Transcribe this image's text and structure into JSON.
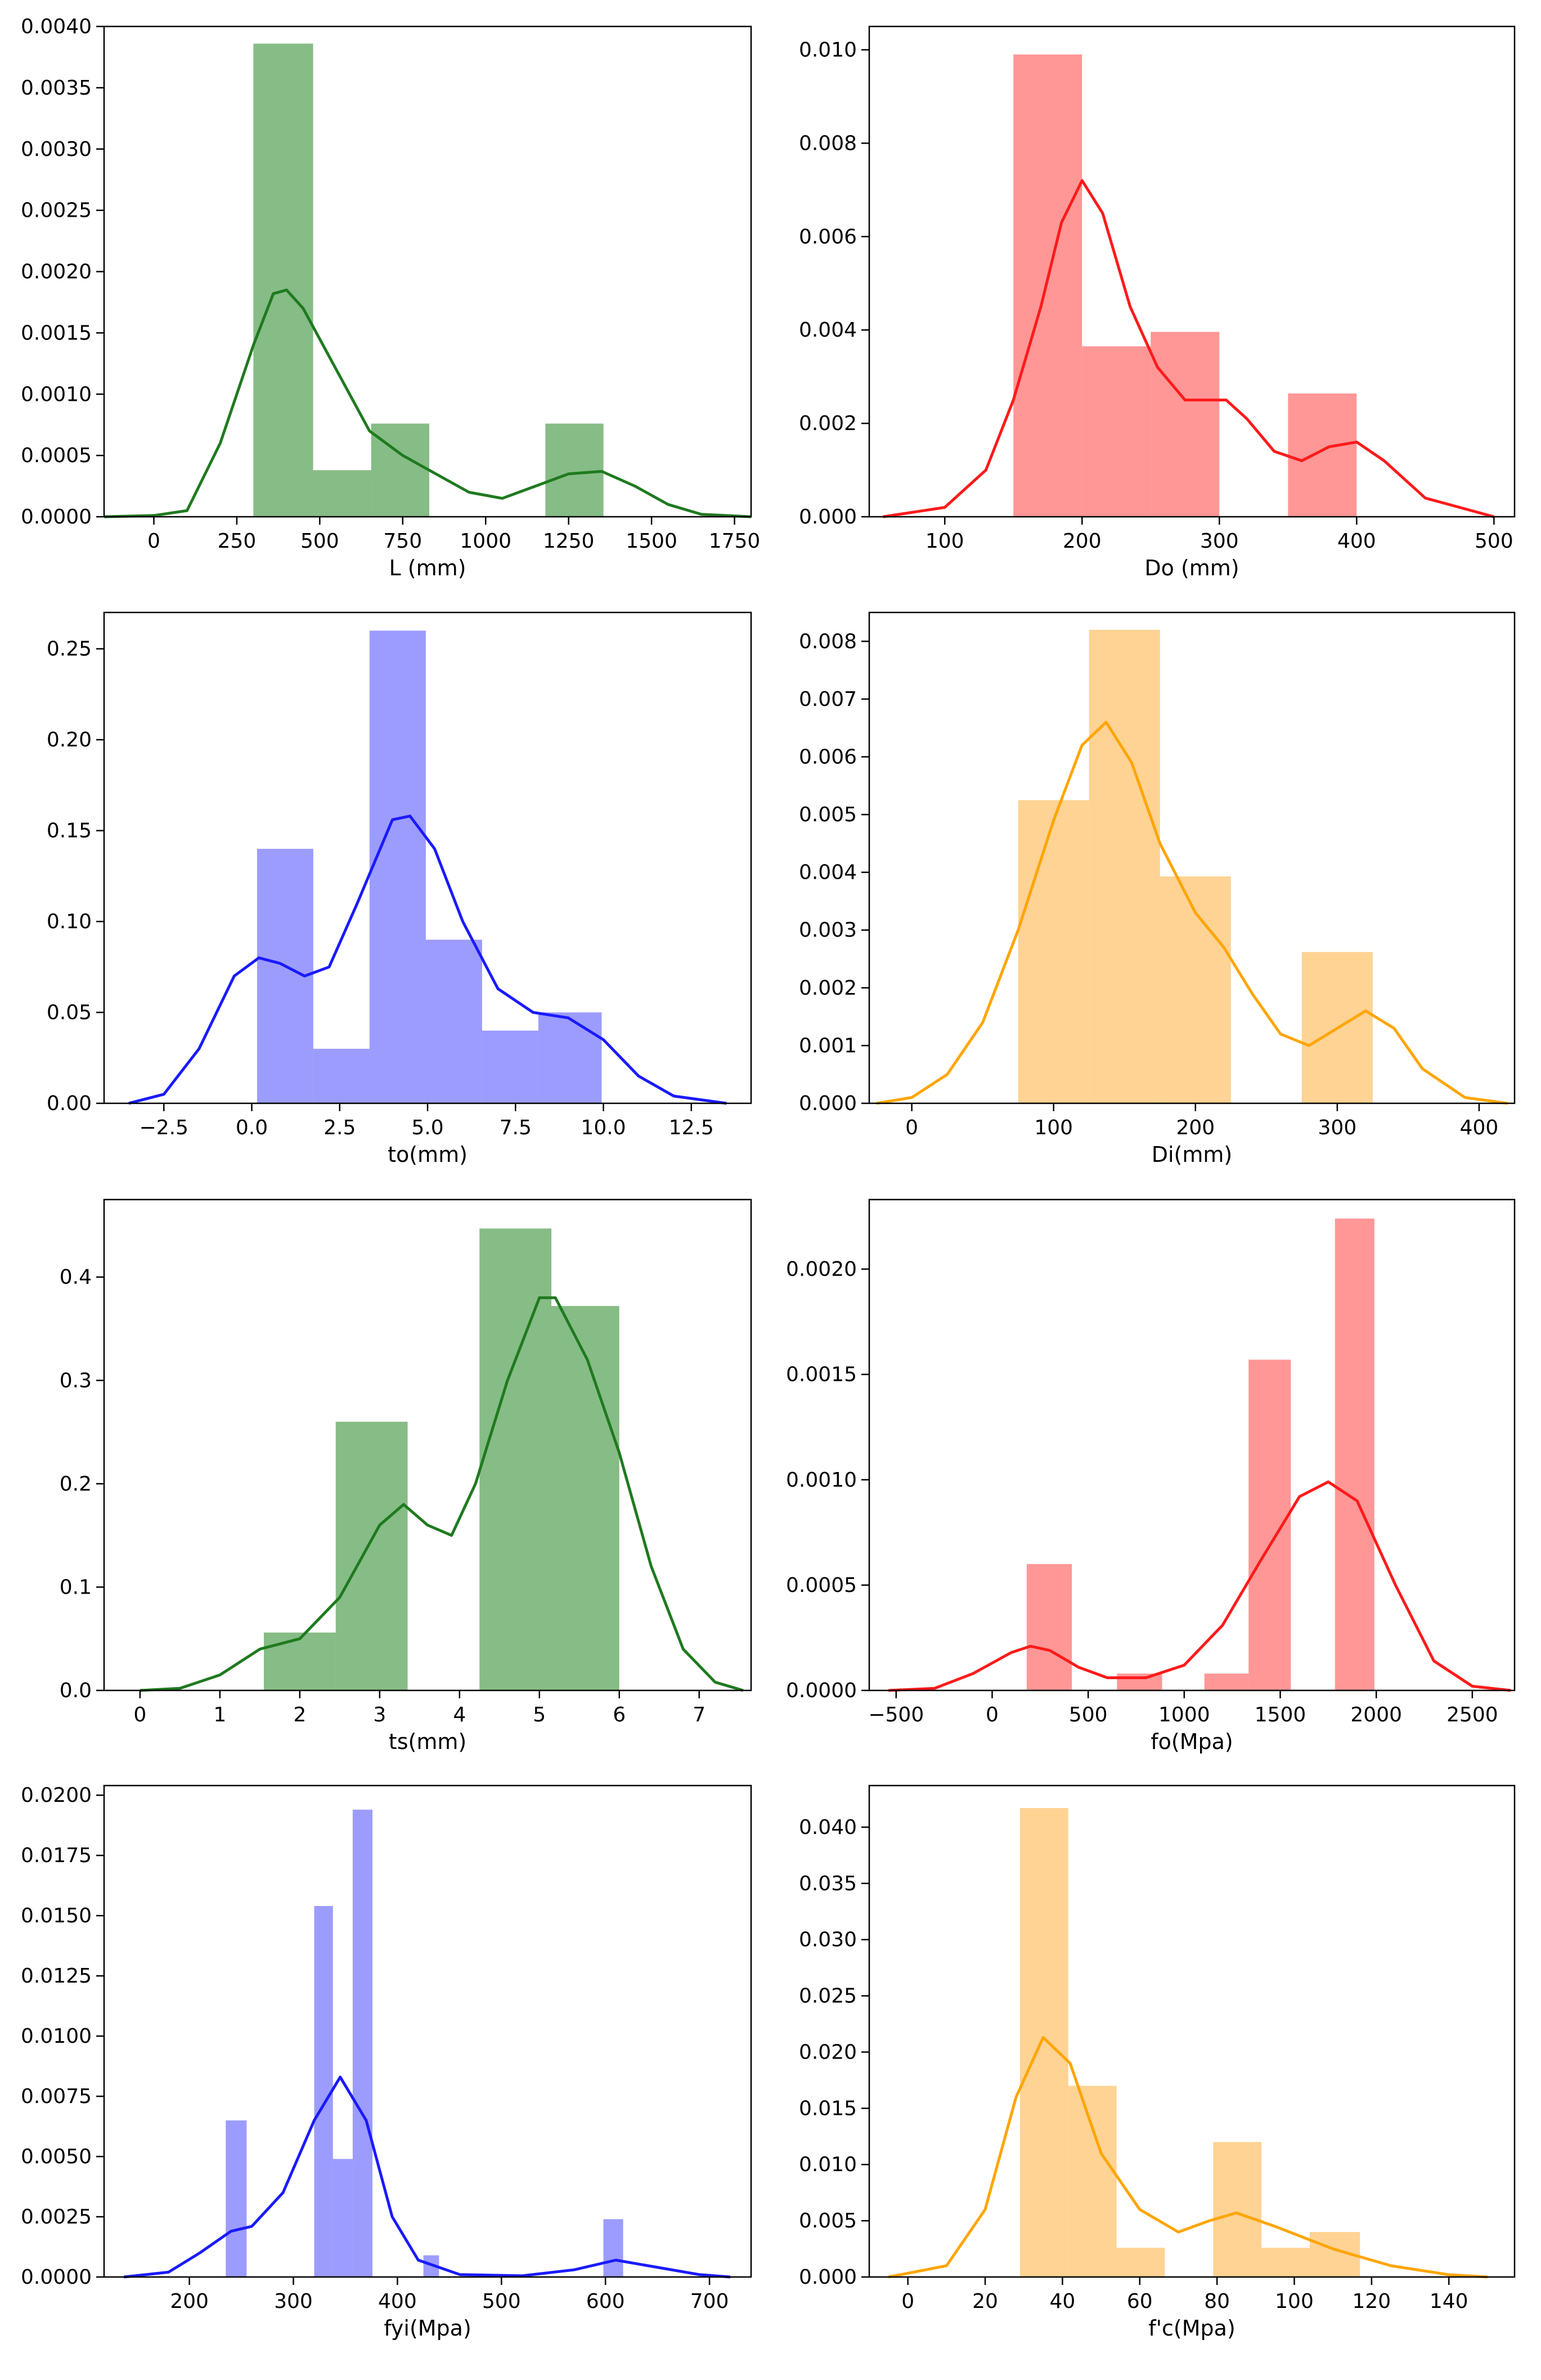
{
  "chart_data": [
    {
      "type": "bar",
      "xlabel": "L (mm)",
      "ylabel": "",
      "xlim": [
        -150,
        1800
      ],
      "ylim": [
        0,
        0.004
      ],
      "xticks": [
        0,
        250,
        500,
        750,
        1000,
        1250,
        1500,
        1750
      ],
      "xtick_labels": [
        "0",
        "250",
        "500",
        "750",
        "1000",
        "1250",
        "1500",
        "1750"
      ],
      "yticks": [
        0,
        0.0005,
        0.001,
        0.0015,
        0.002,
        0.0025,
        0.003,
        0.0035,
        0.004
      ],
      "ytick_labels": [
        "0.0000",
        "0.0005",
        "0.0010",
        "0.0015",
        "0.0020",
        "0.0025",
        "0.0030",
        "0.0035",
        "0.0040"
      ],
      "color": "#2e8b2e",
      "bars": [
        [
          300,
          480,
          0.00386
        ],
        [
          480,
          655,
          0.00038
        ],
        [
          655,
          830,
          0.00076
        ],
        [
          830,
          1005,
          0
        ],
        [
          1005,
          1180,
          0
        ],
        [
          1180,
          1355,
          0.00076
        ]
      ],
      "kde": [
        [
          -150,
          0
        ],
        [
          0,
          1e-05
        ],
        [
          100,
          5e-05
        ],
        [
          200,
          0.0006
        ],
        [
          300,
          0.0014
        ],
        [
          360,
          0.00182
        ],
        [
          400,
          0.00185
        ],
        [
          450,
          0.0017
        ],
        [
          550,
          0.0012
        ],
        [
          650,
          0.0007
        ],
        [
          750,
          0.0005
        ],
        [
          850,
          0.00035
        ],
        [
          950,
          0.0002
        ],
        [
          1050,
          0.00015
        ],
        [
          1150,
          0.00025
        ],
        [
          1250,
          0.00035
        ],
        [
          1350,
          0.00037
        ],
        [
          1450,
          0.00025
        ],
        [
          1550,
          0.0001
        ],
        [
          1650,
          2e-05
        ],
        [
          1800,
          0
        ]
      ]
    },
    {
      "type": "bar",
      "xlabel": "Do (mm)",
      "ylabel": "",
      "xlim": [
        45,
        515
      ],
      "ylim": [
        0,
        0.0105
      ],
      "xticks": [
        100,
        200,
        300,
        400,
        500
      ],
      "xtick_labels": [
        "100",
        "200",
        "300",
        "400",
        "500"
      ],
      "yticks": [
        0,
        0.002,
        0.004,
        0.006,
        0.008,
        0.01
      ],
      "ytick_labels": [
        "0.000",
        "0.002",
        "0.004",
        "0.006",
        "0.008",
        "0.010"
      ],
      "color": "#ff4c4c",
      "bars": [
        [
          150,
          200,
          0.0099
        ],
        [
          200,
          250,
          0.00365
        ],
        [
          250,
          300,
          0.00396
        ],
        [
          300,
          350,
          0
        ],
        [
          350,
          400,
          0.00264
        ]
      ],
      "kde": [
        [
          55,
          0
        ],
        [
          100,
          0.0002
        ],
        [
          130,
          0.001
        ],
        [
          150,
          0.0025
        ],
        [
          170,
          0.0045
        ],
        [
          185,
          0.0063
        ],
        [
          200,
          0.0072
        ],
        [
          215,
          0.0065
        ],
        [
          235,
          0.0045
        ],
        [
          255,
          0.0032
        ],
        [
          275,
          0.0025
        ],
        [
          290,
          0.0025
        ],
        [
          305,
          0.0025
        ],
        [
          320,
          0.0021
        ],
        [
          340,
          0.0014
        ],
        [
          360,
          0.0012
        ],
        [
          380,
          0.0015
        ],
        [
          400,
          0.0016
        ],
        [
          420,
          0.0012
        ],
        [
          450,
          0.0004
        ],
        [
          500,
          0
        ]
      ]
    },
    {
      "type": "bar",
      "xlabel": "to(mm)",
      "ylabel": "",
      "xlim": [
        -4.2,
        14.2
      ],
      "ylim": [
        0,
        0.27
      ],
      "xticks": [
        -2.5,
        0,
        2.5,
        5,
        7.5,
        10,
        12.5
      ],
      "xtick_labels": [
        "−2.5",
        "0.0",
        "2.5",
        "5.0",
        "7.5",
        "10.0",
        "12.5"
      ],
      "yticks": [
        0,
        0.05,
        0.1,
        0.15,
        0.2,
        0.25
      ],
      "ytick_labels": [
        "0.00",
        "0.05",
        "0.10",
        "0.15",
        "0.20",
        "0.25"
      ],
      "color": "#5555ff",
      "bars": [
        [
          0.15,
          1.75,
          0.14
        ],
        [
          1.75,
          3.35,
          0.03
        ],
        [
          3.35,
          4.95,
          0.26
        ],
        [
          4.95,
          6.55,
          0.09
        ],
        [
          6.55,
          8.15,
          0.04
        ],
        [
          8.15,
          9.95,
          0.05
        ]
      ],
      "kde": [
        [
          -3.5,
          0
        ],
        [
          -2.5,
          0.005
        ],
        [
          -1.5,
          0.03
        ],
        [
          -0.5,
          0.07
        ],
        [
          0.2,
          0.08
        ],
        [
          0.8,
          0.077
        ],
        [
          1.5,
          0.07
        ],
        [
          2.2,
          0.075
        ],
        [
          3,
          0.11
        ],
        [
          4,
          0.156
        ],
        [
          4.5,
          0.158
        ],
        [
          5.2,
          0.14
        ],
        [
          6,
          0.1
        ],
        [
          7,
          0.063
        ],
        [
          8,
          0.05
        ],
        [
          9,
          0.047
        ],
        [
          10,
          0.035
        ],
        [
          11,
          0.015
        ],
        [
          12,
          0.004
        ],
        [
          13.5,
          0
        ]
      ]
    },
    {
      "type": "bar",
      "xlabel": "Di(mm)",
      "ylabel": "",
      "xlim": [
        -30,
        425
      ],
      "ylim": [
        0,
        0.0085
      ],
      "xticks": [
        0,
        100,
        200,
        300,
        400
      ],
      "xtick_labels": [
        "0",
        "100",
        "200",
        "300",
        "400"
      ],
      "yticks": [
        0,
        0.001,
        0.002,
        0.003,
        0.004,
        0.005,
        0.006,
        0.007,
        0.008
      ],
      "ytick_labels": [
        "0.000",
        "0.001",
        "0.002",
        "0.003",
        "0.004",
        "0.005",
        "0.006",
        "0.007",
        "0.008"
      ],
      "color": "#ffb347",
      "bars": [
        [
          75,
          125,
          0.00525
        ],
        [
          125,
          175,
          0.0082
        ],
        [
          175,
          225,
          0.00393
        ],
        [
          225,
          275,
          0
        ],
        [
          275,
          325,
          0.00262
        ]
      ],
      "kde": [
        [
          -25,
          0
        ],
        [
          0,
          0.0001
        ],
        [
          25,
          0.0005
        ],
        [
          50,
          0.0014
        ],
        [
          75,
          0.003
        ],
        [
          100,
          0.0049
        ],
        [
          120,
          0.0062
        ],
        [
          137,
          0.0066
        ],
        [
          155,
          0.0059
        ],
        [
          175,
          0.0045
        ],
        [
          200,
          0.0033
        ],
        [
          220,
          0.0027
        ],
        [
          240,
          0.0019
        ],
        [
          260,
          0.0012
        ],
        [
          280,
          0.001
        ],
        [
          300,
          0.0013
        ],
        [
          320,
          0.0016
        ],
        [
          340,
          0.0013
        ],
        [
          360,
          0.0006
        ],
        [
          390,
          0.0001
        ],
        [
          420,
          0
        ]
      ]
    },
    {
      "type": "bar",
      "xlabel": "ts(mm)",
      "ylabel": "",
      "xlim": [
        -0.45,
        7.65
      ],
      "ylim": [
        0,
        0.475
      ],
      "xticks": [
        0,
        1,
        2,
        3,
        4,
        5,
        6,
        7
      ],
      "xtick_labels": [
        "0",
        "1",
        "2",
        "3",
        "4",
        "5",
        "6",
        "7"
      ],
      "yticks": [
        0,
        0.1,
        0.2,
        0.3,
        0.4
      ],
      "ytick_labels": [
        "0.0",
        "0.1",
        "0.2",
        "0.3",
        "0.4"
      ],
      "color": "#2e8b2e",
      "bars": [
        [
          1.55,
          2.45,
          0.056
        ],
        [
          2.45,
          3.35,
          0.26
        ],
        [
          3.35,
          4.25,
          0
        ],
        [
          4.25,
          5.15,
          0.447
        ],
        [
          5.15,
          6.0,
          0.372
        ]
      ],
      "kde": [
        [
          0,
          0
        ],
        [
          0.5,
          0.002
        ],
        [
          1,
          0.015
        ],
        [
          1.5,
          0.04
        ],
        [
          2,
          0.05
        ],
        [
          2.5,
          0.09
        ],
        [
          3,
          0.16
        ],
        [
          3.3,
          0.18
        ],
        [
          3.6,
          0.16
        ],
        [
          3.9,
          0.15
        ],
        [
          4.2,
          0.2
        ],
        [
          4.6,
          0.3
        ],
        [
          5,
          0.38
        ],
        [
          5.2,
          0.38
        ],
        [
          5.6,
          0.32
        ],
        [
          6,
          0.23
        ],
        [
          6.4,
          0.12
        ],
        [
          6.8,
          0.04
        ],
        [
          7.2,
          0.008
        ],
        [
          7.55,
          0
        ]
      ]
    },
    {
      "type": "bar",
      "xlabel": "fo(Mpa)",
      "ylabel": "",
      "xlim": [
        -640,
        2720
      ],
      "ylim": [
        0,
        0.00233
      ],
      "xticks": [
        -500,
        0,
        500,
        1000,
        1500,
        2000,
        2500
      ],
      "xtick_labels": [
        "−500",
        "0",
        "500",
        "1000",
        "1500",
        "2000",
        "2500"
      ],
      "yticks": [
        0,
        0.0005,
        0.001,
        0.0015,
        0.002
      ],
      "ytick_labels": [
        "0.0000",
        "0.0005",
        "0.0010",
        "0.0015",
        "0.0020"
      ],
      "color": "#ff4c4c",
      "bars": [
        [
          180,
          415,
          0.0006
        ],
        [
          415,
          650,
          0
        ],
        [
          650,
          885,
          8e-05
        ],
        [
          885,
          1105,
          0
        ],
        [
          1105,
          1335,
          8e-05
        ],
        [
          1335,
          1555,
          0.00157
        ],
        [
          1555,
          1785,
          0
        ],
        [
          1785,
          1990,
          0.00224
        ]
      ],
      "kde": [
        [
          -540,
          0
        ],
        [
          -300,
          1e-05
        ],
        [
          -100,
          8e-05
        ],
        [
          100,
          0.00018
        ],
        [
          200,
          0.00021
        ],
        [
          300,
          0.00019
        ],
        [
          450,
          0.00011
        ],
        [
          600,
          6e-05
        ],
        [
          800,
          6e-05
        ],
        [
          1000,
          0.00012
        ],
        [
          1200,
          0.00031
        ],
        [
          1400,
          0.00062
        ],
        [
          1600,
          0.00092
        ],
        [
          1750,
          0.00099
        ],
        [
          1900,
          0.0009
        ],
        [
          2100,
          0.0005
        ],
        [
          2300,
          0.00014
        ],
        [
          2500,
          2e-05
        ],
        [
          2700,
          0
        ]
      ]
    },
    {
      "type": "bar",
      "xlabel": "fyi(Mpa)",
      "ylabel": "",
      "xlim": [
        118,
        740
      ],
      "ylim": [
        0,
        0.0204
      ],
      "xticks": [
        200,
        300,
        400,
        500,
        600,
        700
      ],
      "xtick_labels": [
        "200",
        "300",
        "400",
        "500",
        "600",
        "700"
      ],
      "yticks": [
        0,
        0.0025,
        0.005,
        0.0075,
        0.01,
        0.0125,
        0.015,
        0.0175,
        0.02
      ],
      "ytick_labels": [
        "0.0000",
        "0.0025",
        "0.0050",
        "0.0075",
        "0.0100",
        "0.0125",
        "0.0150",
        "0.0175",
        "0.0200"
      ],
      "color": "#5555ff",
      "bars": [
        [
          235,
          255,
          0.0065
        ],
        [
          255,
          320,
          0
        ],
        [
          320,
          338,
          0.0154
        ],
        [
          338,
          357,
          0.0049
        ],
        [
          357,
          376,
          0.0194
        ],
        [
          376,
          425,
          0
        ],
        [
          425,
          440,
          0.0009
        ],
        [
          440,
          598,
          0
        ],
        [
          598,
          617,
          0.0024
        ]
      ],
      "kde": [
        [
          137,
          0
        ],
        [
          180,
          0.0002
        ],
        [
          210,
          0.001
        ],
        [
          240,
          0.0019
        ],
        [
          260,
          0.0021
        ],
        [
          290,
          0.0035
        ],
        [
          320,
          0.0065
        ],
        [
          345,
          0.0083
        ],
        [
          370,
          0.0065
        ],
        [
          395,
          0.0025
        ],
        [
          420,
          0.0007
        ],
        [
          460,
          0.0001
        ],
        [
          520,
          5e-05
        ],
        [
          570,
          0.0003
        ],
        [
          610,
          0.0007
        ],
        [
          650,
          0.0004
        ],
        [
          690,
          0.0001
        ],
        [
          720,
          0
        ]
      ]
    },
    {
      "type": "bar",
      "xlabel": "f'c(Mpa)",
      "ylabel": "",
      "xlim": [
        -10,
        157
      ],
      "ylim": [
        0,
        0.0437
      ],
      "xticks": [
        0,
        20,
        40,
        60,
        80,
        100,
        120,
        140
      ],
      "xtick_labels": [
        "0",
        "20",
        "40",
        "60",
        "80",
        "100",
        "120",
        "140"
      ],
      "yticks": [
        0,
        0.005,
        0.01,
        0.015,
        0.02,
        0.025,
        0.03,
        0.035,
        0.04
      ],
      "ytick_labels": [
        "0.000",
        "0.005",
        "0.010",
        "0.015",
        "0.020",
        "0.025",
        "0.030",
        "0.035",
        "0.040"
      ],
      "color": "#ffb347",
      "bars": [
        [
          29,
          41.5,
          0.0417
        ],
        [
          41.5,
          54,
          0.017
        ],
        [
          54,
          66.5,
          0.0026
        ],
        [
          66.5,
          79,
          0
        ],
        [
          79,
          91.5,
          0.012
        ],
        [
          91.5,
          104,
          0.0026
        ],
        [
          104,
          117,
          0.004
        ]
      ],
      "kde": [
        [
          -5,
          0
        ],
        [
          10,
          0.001
        ],
        [
          20,
          0.006
        ],
        [
          28,
          0.016
        ],
        [
          35,
          0.0213
        ],
        [
          42,
          0.019
        ],
        [
          50,
          0.011
        ],
        [
          60,
          0.006
        ],
        [
          70,
          0.004
        ],
        [
          78,
          0.005
        ],
        [
          85,
          0.0057
        ],
        [
          95,
          0.0045
        ],
        [
          110,
          0.0025
        ],
        [
          125,
          0.001
        ],
        [
          140,
          0.0002
        ],
        [
          150,
          0
        ]
      ]
    }
  ]
}
